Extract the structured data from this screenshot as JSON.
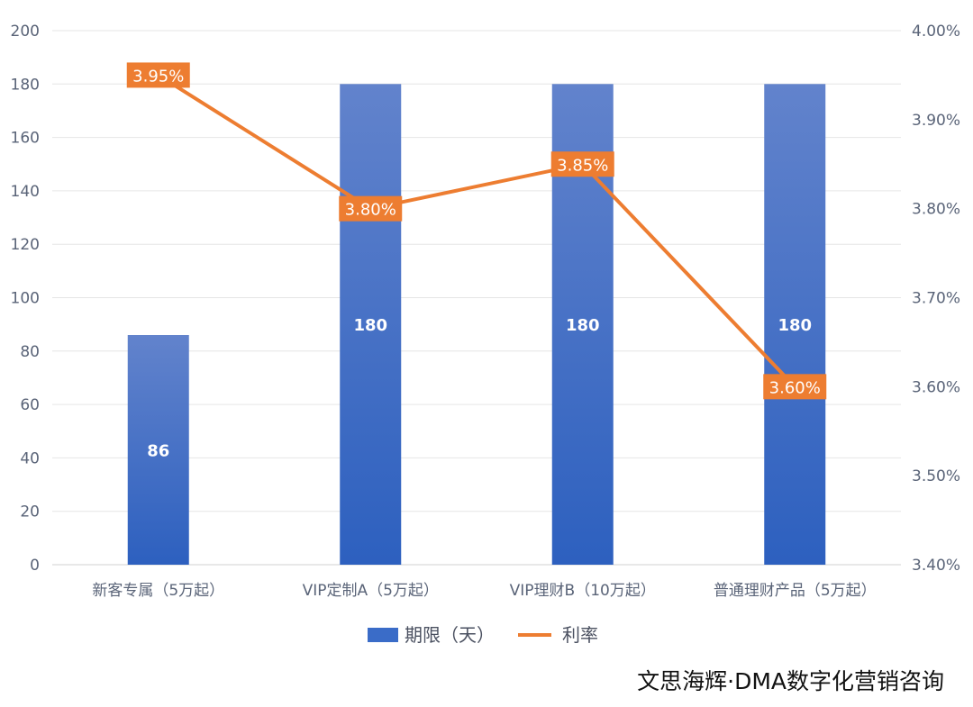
{
  "chart_data": {
    "type": "bar+line",
    "categories": [
      "新客专属（5万起）",
      "VIP定制A（5万起）",
      "VIP理财B（10万起）",
      "普通理财产品（5万起）"
    ],
    "series": [
      {
        "name": "期限（天）",
        "type": "bar",
        "axis": "left",
        "values": [
          86,
          180,
          180,
          180
        ],
        "labels": [
          "86",
          "180",
          "180",
          "180"
        ],
        "color": "#3a6cc8"
      },
      {
        "name": "利率",
        "type": "line",
        "axis": "right",
        "values": [
          3.95,
          3.8,
          3.85,
          3.6
        ],
        "labels": [
          "3.95%",
          "3.80%",
          "3.85%",
          "3.60%"
        ],
        "color": "#ed7d31"
      }
    ],
    "left_axis": {
      "ylim": [
        0,
        200
      ],
      "ticks": [
        "0",
        "20",
        "40",
        "60",
        "80",
        "100",
        "120",
        "140",
        "160",
        "180",
        "200"
      ]
    },
    "right_axis": {
      "ylim": [
        3.4,
        4.0
      ],
      "ticks": [
        "3.40%",
        "3.50%",
        "3.60%",
        "3.70%",
        "3.80%",
        "3.90%",
        "4.00%"
      ]
    },
    "grid": true,
    "legend": "bottom-center"
  },
  "watermark": "文思海辉·DMA数字化营销咨询"
}
